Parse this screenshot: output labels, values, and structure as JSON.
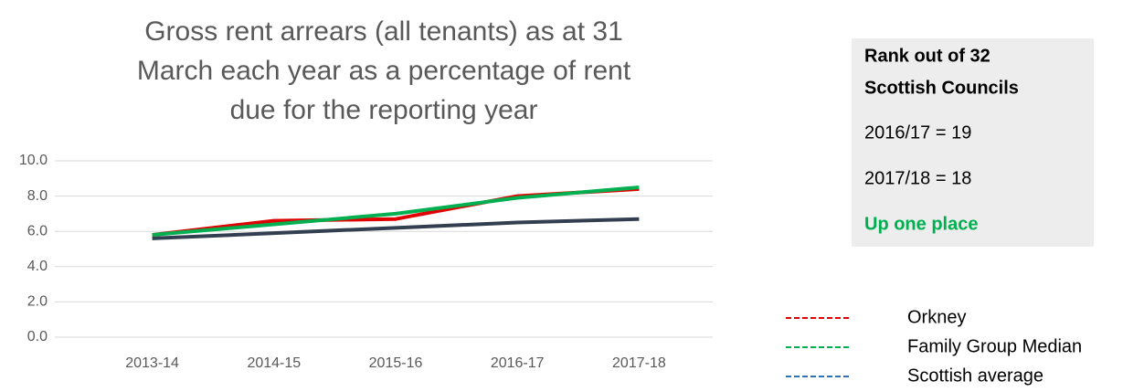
{
  "chart_data": {
    "type": "line",
    "title_lines": [
      "Gross rent arrears (all tenants) as at 31",
      "March each year as a percentage of rent",
      "due for the reporting year"
    ],
    "categories": [
      "2013-14",
      "2014-15",
      "2015-16",
      "2016-17",
      "2017-18"
    ],
    "series": [
      {
        "name": "Orkney",
        "color": "#e00000",
        "legend_color": "#e00000",
        "values": [
          5.8,
          6.6,
          6.7,
          8.0,
          8.4
        ]
      },
      {
        "name": "Family Group Median",
        "color": "#00b050",
        "legend_color": "#00b050",
        "values": [
          5.8,
          6.4,
          7.0,
          7.9,
          8.5
        ]
      },
      {
        "name": "Scottish average",
        "color": "#333f50",
        "legend_color": "#2e75b6",
        "values": [
          5.6,
          5.9,
          6.2,
          6.5,
          6.7
        ]
      }
    ],
    "ylim": [
      0,
      10
    ],
    "yticks": [
      {
        "value": 0,
        "label": "0.0"
      },
      {
        "value": 2,
        "label": "2.0"
      },
      {
        "value": 4,
        "label": "4.0"
      },
      {
        "value": 6,
        "label": "6.0"
      },
      {
        "value": 8,
        "label": "8.0"
      },
      {
        "value": 10,
        "label": "10.0"
      }
    ],
    "grid": true
  },
  "rank_box": {
    "heading_lines": [
      "Rank out of 32",
      "Scottish Councils"
    ],
    "lines": [
      "2016/17 = 19",
      "2017/18 = 18"
    ],
    "change": "Up one place"
  }
}
